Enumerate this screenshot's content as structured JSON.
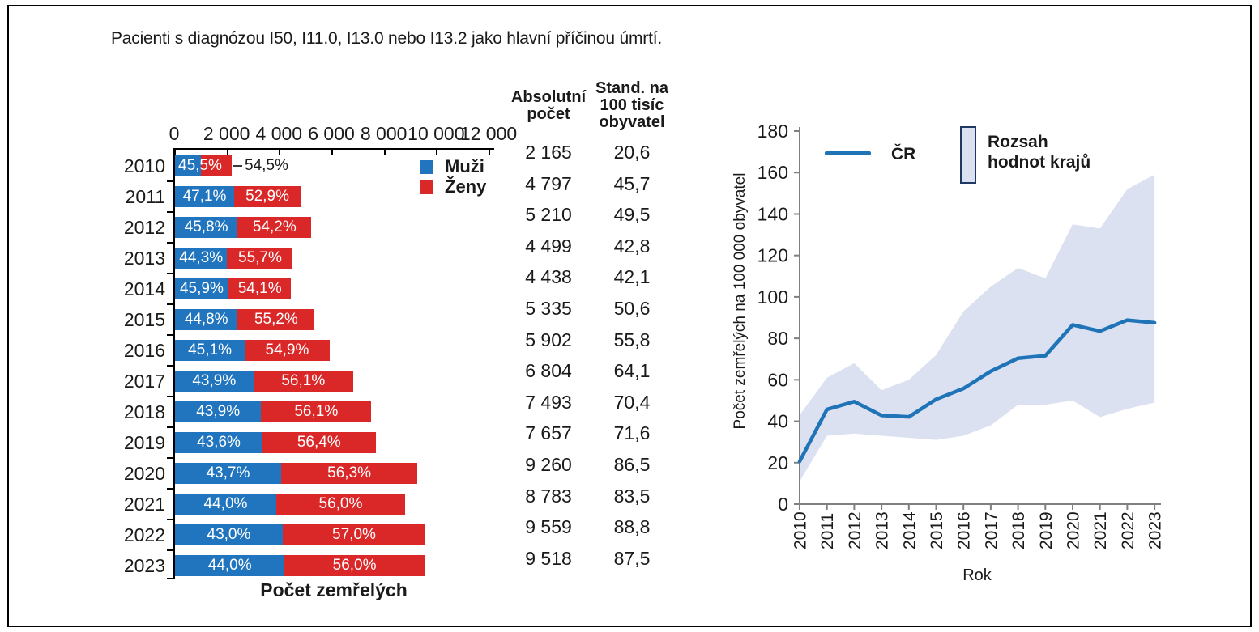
{
  "title": "Pacienti s diagnózou I50, I11.0, I13.0 nebo I13.2 jako hlavní příčinou úmrtí.",
  "colors": {
    "men_blue": "#2075BE",
    "women_red": "#DA2828",
    "line_blue": "#1F74B8",
    "band_fill": "#DCE1F2",
    "band_border": "#1F3864",
    "axis_gray": "#808080",
    "axis_black": "#000000"
  },
  "chart_data": [
    {
      "type": "bar",
      "orientation": "horizontal-stacked",
      "xlabel": "Počet zemřelých",
      "xlim": [
        0,
        12000
      ],
      "axis_ticks": [
        "0",
        "2 000",
        "4 000",
        "6 000",
        "8 000",
        "10 000",
        "12 000"
      ],
      "categories": [
        "2010",
        "2011",
        "2012",
        "2013",
        "2014",
        "2015",
        "2016",
        "2017",
        "2018",
        "2019",
        "2020",
        "2021",
        "2022",
        "2023"
      ],
      "totals": [
        2165,
        4797,
        5210,
        4499,
        4438,
        5335,
        5902,
        6804,
        7493,
        7657,
        9260,
        8783,
        9559,
        9518
      ],
      "series": [
        {
          "name": "Muži",
          "pct": [
            45.5,
            47.1,
            45.8,
            44.3,
            45.9,
            44.8,
            45.1,
            43.9,
            43.9,
            43.6,
            43.7,
            44.0,
            43.0,
            44.0
          ],
          "labels": [
            "45,5%",
            "47,1%",
            "45,8%",
            "44,3%",
            "45,9%",
            "44,8%",
            "45,1%",
            "43,9%",
            "43,9%",
            "43,6%",
            "43,7%",
            "44,0%",
            "43,0%",
            "44,0%"
          ]
        },
        {
          "name": "Ženy",
          "pct": [
            54.5,
            52.9,
            54.2,
            55.7,
            54.1,
            55.2,
            54.9,
            56.1,
            56.1,
            56.4,
            56.3,
            56.0,
            57.0,
            56.0
          ],
          "labels": [
            "54,5%",
            "52,9%",
            "54,2%",
            "55,7%",
            "54,1%",
            "55,2%",
            "54,9%",
            "56,1%",
            "56,1%",
            "56,4%",
            "56,3%",
            "56,0%",
            "57,0%",
            "56,0%"
          ]
        }
      ],
      "legend": {
        "men": "Muži",
        "women": "Ženy"
      }
    },
    {
      "type": "table",
      "col1_header": "Absolutní\npočet",
      "col2_header": "Stand. na\n100 tisíc\nobyvatel",
      "rows": [
        [
          "2 165",
          "20,6"
        ],
        [
          "4 797",
          "45,7"
        ],
        [
          "5 210",
          "49,5"
        ],
        [
          "4 499",
          "42,8"
        ],
        [
          "4 438",
          "42,1"
        ],
        [
          "5 335",
          "50,6"
        ],
        [
          "5 902",
          "55,8"
        ],
        [
          "6 804",
          "64,1"
        ],
        [
          "7 493",
          "70,4"
        ],
        [
          "7 657",
          "71,6"
        ],
        [
          "9 260",
          "86,5"
        ],
        [
          "8 783",
          "83,5"
        ],
        [
          "9 559",
          "88,8"
        ],
        [
          "9 518",
          "87,5"
        ]
      ]
    },
    {
      "type": "line",
      "xlabel": "Rok",
      "ylabel": "Počet zemřelých na 100 000 obyvatel",
      "ylim": [
        0,
        180
      ],
      "ytick_step": 20,
      "x": [
        "2010",
        "2011",
        "2012",
        "2013",
        "2014",
        "2015",
        "2016",
        "2017",
        "2018",
        "2019",
        "2020",
        "2021",
        "2022",
        "2023"
      ],
      "series": [
        {
          "name": "ČR",
          "values": [
            20.6,
            45.7,
            49.5,
            42.8,
            42.1,
            50.6,
            55.8,
            64.1,
            70.4,
            71.6,
            86.5,
            83.5,
            88.8,
            87.5
          ]
        }
      ],
      "band": {
        "name": "Rozsah hodnot krajů",
        "label_multiline": "Rozsah\nhodnot krajů",
        "lower": [
          11,
          33,
          34,
          33,
          32,
          31,
          33,
          38,
          48,
          48,
          50,
          42,
          46,
          49
        ],
        "upper": [
          43,
          61,
          68,
          55,
          60,
          72,
          93,
          105,
          114,
          109,
          135,
          133,
          152,
          159
        ]
      },
      "legend": {
        "line": "ČR",
        "band": "Rozsah hodnot krajů"
      }
    }
  ]
}
